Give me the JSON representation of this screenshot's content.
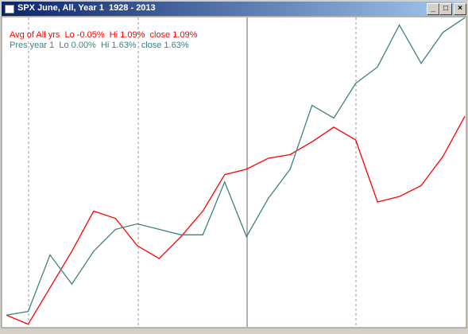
{
  "chart_data": {
    "type": "line",
    "title": "SPX June, All, Year 1  1928 - 2013",
    "ylim": [
      -0.06,
      1.64
    ],
    "series": [
      {
        "name": "Avg of All yrs  Lo -0.05%  Hi 1.09%  close 1.09%",
        "color": "#ff0000",
        "values": [
          0,
          -0.05,
          0.15,
          0.35,
          0.57,
          0.53,
          0.38,
          0.31,
          0.43,
          0.57,
          0.77,
          0.8,
          0.86,
          0.88,
          0.95,
          1.03,
          0.96,
          0.62,
          0.65,
          0.71,
          0.87,
          1.09
        ]
      },
      {
        "name": "Pres year 1  Lo 0.00%  Hi 1.63%  close 1.63%",
        "color": "#408080",
        "values": [
          0,
          0.02,
          0.33,
          0.17,
          0.35,
          0.47,
          0.5,
          0.47,
          0.44,
          0.44,
          0.73,
          0.43,
          0.64,
          0.8,
          1.15,
          1.08,
          1.27,
          1.36,
          1.59,
          1.38,
          1.55,
          1.63
        ]
      }
    ]
  }
}
